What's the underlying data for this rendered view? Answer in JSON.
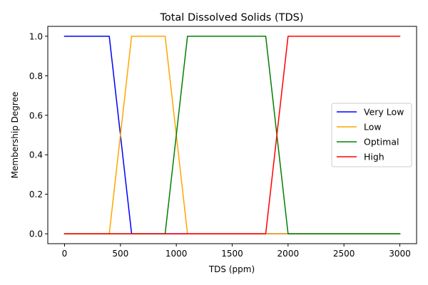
{
  "chart_data": {
    "type": "line",
    "title": "Total Dissolved Solids (TDS)",
    "xlabel": "TDS (ppm)",
    "ylabel": "Membership Degree",
    "xlim": [
      -150,
      3150
    ],
    "ylim": [
      -0.05,
      1.05
    ],
    "xticks": [
      0,
      500,
      1000,
      1500,
      2000,
      2500,
      3000
    ],
    "xtick_labels": [
      "0",
      "500",
      "1000",
      "1500",
      "2000",
      "2500",
      "3000"
    ],
    "yticks": [
      0.0,
      0.2,
      0.4,
      0.6,
      0.8,
      1.0
    ],
    "ytick_labels": [
      "0.0",
      "0.2",
      "0.4",
      "0.6",
      "0.8",
      "1.0"
    ],
    "grid": false,
    "legend_position": "center-right",
    "series": [
      {
        "name": "Very Low",
        "color": "#0000ff",
        "x": [
          0,
          400,
          600,
          3000
        ],
        "y": [
          1,
          1,
          0,
          0
        ]
      },
      {
        "name": "Low",
        "color": "#ffa500",
        "x": [
          0,
          400,
          600,
          900,
          1100,
          3000
        ],
        "y": [
          0,
          0,
          1,
          1,
          0,
          0
        ]
      },
      {
        "name": "Optimal",
        "color": "#008000",
        "x": [
          0,
          900,
          1100,
          1800,
          2000,
          3000
        ],
        "y": [
          0,
          0,
          1,
          1,
          0,
          0
        ]
      },
      {
        "name": "High",
        "color": "#ff0000",
        "x": [
          0,
          1800,
          2000,
          3000
        ],
        "y": [
          0,
          0,
          1,
          1
        ]
      }
    ]
  }
}
